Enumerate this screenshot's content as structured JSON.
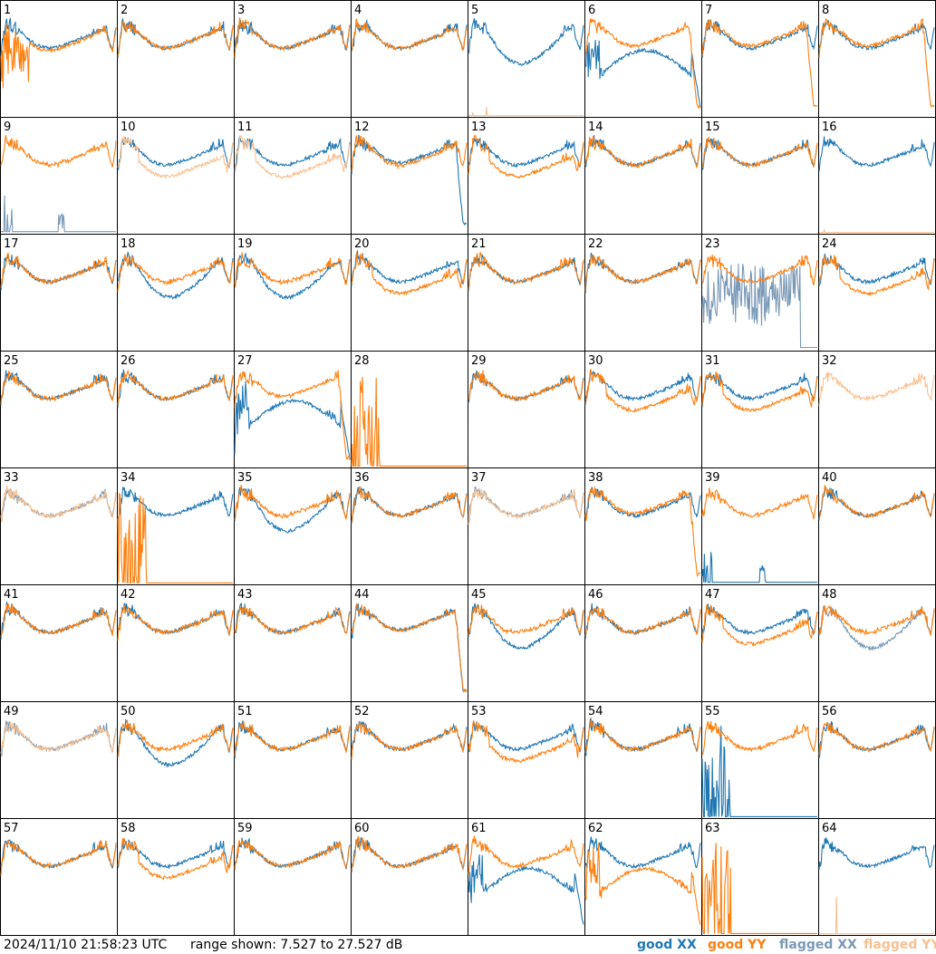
{
  "footer": {
    "timestamp": "2024/11/10 21:58:23 UTC",
    "range_text": "range shown: 7.527 to 27.527 dB",
    "legend": {
      "good_xx": "good XX",
      "good_yy": "good YY",
      "flagged_xx": "flagged XX",
      "flagged_yy": "flagged YY"
    }
  },
  "colors": {
    "good_xx": "#1f77b4",
    "good_yy": "#ff7f0e",
    "flagged_xx": "#7a99b6",
    "flagged_yy": "#f9c08f",
    "border": "#000000"
  },
  "chart_data": {
    "type": "line",
    "title": "",
    "ylim": [
      7.527,
      27.527
    ],
    "yunit": "dB",
    "grid": "8x8 small multiples",
    "panels": [
      {
        "id": "1",
        "xx": "good",
        "yy": "good",
        "xx_shape": "normal",
        "yy_shape": "spiky_low"
      },
      {
        "id": "2",
        "xx": "good",
        "yy": "good",
        "xx_shape": "normal",
        "yy_shape": "normal"
      },
      {
        "id": "3",
        "xx": "good",
        "yy": "good",
        "xx_shape": "normal",
        "yy_shape": "normal"
      },
      {
        "id": "4",
        "xx": "good",
        "yy": "good",
        "xx_shape": "normal",
        "yy_shape": "normal"
      },
      {
        "id": "5",
        "xx": "good",
        "yy": "flagged",
        "xx_shape": "dip",
        "yy_shape": "bottom"
      },
      {
        "id": "6",
        "xx": "good",
        "yy": "good",
        "xx_shape": "trough",
        "yy_shape": "high"
      },
      {
        "id": "7",
        "xx": "good",
        "yy": "good",
        "xx_shape": "normal",
        "yy_shape": "high"
      },
      {
        "id": "8",
        "xx": "good",
        "yy": "good",
        "xx_shape": "normal",
        "yy_shape": "high"
      },
      {
        "id": "9",
        "xx": "flagged",
        "yy": "good",
        "xx_shape": "sparse",
        "yy_shape": "normal"
      },
      {
        "id": "10",
        "xx": "good",
        "yy": "flagged",
        "xx_shape": "normal",
        "yy_shape": "low"
      },
      {
        "id": "11",
        "xx": "good",
        "yy": "flagged",
        "xx_shape": "normal",
        "yy_shape": "low"
      },
      {
        "id": "12",
        "xx": "good",
        "yy": "good",
        "xx_shape": "high",
        "yy_shape": "normal"
      },
      {
        "id": "13",
        "xx": "good",
        "yy": "good",
        "xx_shape": "normal",
        "yy_shape": "low"
      },
      {
        "id": "14",
        "xx": "good",
        "yy": "good",
        "xx_shape": "normal",
        "yy_shape": "normal"
      },
      {
        "id": "15",
        "xx": "good",
        "yy": "good",
        "xx_shape": "normal",
        "yy_shape": "normal"
      },
      {
        "id": "16",
        "xx": "good",
        "yy": "flagged",
        "xx_shape": "normal",
        "yy_shape": "bottom"
      },
      {
        "id": "17",
        "xx": "good",
        "yy": "good",
        "xx_shape": "normal",
        "yy_shape": "normal"
      },
      {
        "id": "18",
        "xx": "good",
        "yy": "good",
        "xx_shape": "dip",
        "yy_shape": "normal"
      },
      {
        "id": "19",
        "xx": "good",
        "yy": "good",
        "xx_shape": "dip",
        "yy_shape": "normal"
      },
      {
        "id": "20",
        "xx": "good",
        "yy": "good",
        "xx_shape": "normal",
        "yy_shape": "low"
      },
      {
        "id": "21",
        "xx": "good",
        "yy": "good",
        "xx_shape": "normal",
        "yy_shape": "normal"
      },
      {
        "id": "22",
        "xx": "good",
        "yy": "good",
        "xx_shape": "normal",
        "yy_shape": "normal"
      },
      {
        "id": "23",
        "xx": "flagged",
        "yy": "good",
        "xx_shape": "noisy",
        "yy_shape": "normal"
      },
      {
        "id": "24",
        "xx": "good",
        "yy": "good",
        "xx_shape": "normal",
        "yy_shape": "low"
      },
      {
        "id": "25",
        "xx": "good",
        "yy": "good",
        "xx_shape": "normal",
        "yy_shape": "normal"
      },
      {
        "id": "26",
        "xx": "good",
        "yy": "good",
        "xx_shape": "normal",
        "yy_shape": "normal"
      },
      {
        "id": "27",
        "xx": "good",
        "yy": "good",
        "xx_shape": "trough",
        "yy_shape": "high"
      },
      {
        "id": "28",
        "xx": "none",
        "yy": "good",
        "xx_shape": "none",
        "yy_shape": "spikes"
      },
      {
        "id": "29",
        "xx": "good",
        "yy": "good",
        "xx_shape": "normal",
        "yy_shape": "normal"
      },
      {
        "id": "30",
        "xx": "good",
        "yy": "good",
        "xx_shape": "normal",
        "yy_shape": "low"
      },
      {
        "id": "31",
        "xx": "good",
        "yy": "good",
        "xx_shape": "normal",
        "yy_shape": "low"
      },
      {
        "id": "32",
        "xx": "none",
        "yy": "flagged",
        "xx_shape": "none",
        "yy_shape": "normal"
      },
      {
        "id": "33",
        "xx": "flagged",
        "yy": "flagged",
        "xx_shape": "normal",
        "yy_shape": "normal"
      },
      {
        "id": "34",
        "xx": "good",
        "yy": "good",
        "xx_shape": "normal",
        "yy_shape": "spikes"
      },
      {
        "id": "35",
        "xx": "good",
        "yy": "good",
        "xx_shape": "dip",
        "yy_shape": "normal"
      },
      {
        "id": "36",
        "xx": "good",
        "yy": "good",
        "xx_shape": "normal",
        "yy_shape": "normal"
      },
      {
        "id": "37",
        "xx": "flagged",
        "yy": "flagged",
        "xx_shape": "normal",
        "yy_shape": "normal"
      },
      {
        "id": "38",
        "xx": "good",
        "yy": "good",
        "xx_shape": "normal",
        "yy_shape": "high"
      },
      {
        "id": "39",
        "xx": "good",
        "yy": "good",
        "xx_shape": "sparse",
        "yy_shape": "normal"
      },
      {
        "id": "40",
        "xx": "good",
        "yy": "good",
        "xx_shape": "normal",
        "yy_shape": "normal"
      },
      {
        "id": "41",
        "xx": "good",
        "yy": "good",
        "xx_shape": "normal",
        "yy_shape": "normal"
      },
      {
        "id": "42",
        "xx": "good",
        "yy": "good",
        "xx_shape": "normal",
        "yy_shape": "normal"
      },
      {
        "id": "43",
        "xx": "good",
        "yy": "good",
        "xx_shape": "normal",
        "yy_shape": "normal"
      },
      {
        "id": "44",
        "xx": "good",
        "yy": "good",
        "xx_shape": "high",
        "yy_shape": "high"
      },
      {
        "id": "45",
        "xx": "good",
        "yy": "good",
        "xx_shape": "dip",
        "yy_shape": "normal"
      },
      {
        "id": "46",
        "xx": "good",
        "yy": "good",
        "xx_shape": "normal",
        "yy_shape": "normal"
      },
      {
        "id": "47",
        "xx": "good",
        "yy": "good",
        "xx_shape": "normal",
        "yy_shape": "low"
      },
      {
        "id": "48",
        "xx": "flagged",
        "yy": "good",
        "xx_shape": "dip",
        "yy_shape": "normal"
      },
      {
        "id": "49",
        "xx": "flagged",
        "yy": "flagged",
        "xx_shape": "normal",
        "yy_shape": "normal"
      },
      {
        "id": "50",
        "xx": "good",
        "yy": "good",
        "xx_shape": "dip",
        "yy_shape": "normal"
      },
      {
        "id": "51",
        "xx": "good",
        "yy": "good",
        "xx_shape": "normal",
        "yy_shape": "normal"
      },
      {
        "id": "52",
        "xx": "good",
        "yy": "good",
        "xx_shape": "normal",
        "yy_shape": "normal"
      },
      {
        "id": "53",
        "xx": "good",
        "yy": "good",
        "xx_shape": "normal",
        "yy_shape": "low"
      },
      {
        "id": "54",
        "xx": "good",
        "yy": "good",
        "xx_shape": "normal",
        "yy_shape": "normal"
      },
      {
        "id": "55",
        "xx": "good",
        "yy": "good",
        "xx_shape": "spikes",
        "yy_shape": "normal"
      },
      {
        "id": "56",
        "xx": "good",
        "yy": "good",
        "xx_shape": "normal",
        "yy_shape": "normal"
      },
      {
        "id": "57",
        "xx": "good",
        "yy": "good",
        "xx_shape": "normal",
        "yy_shape": "normal"
      },
      {
        "id": "58",
        "xx": "good",
        "yy": "good",
        "xx_shape": "normal",
        "yy_shape": "low"
      },
      {
        "id": "59",
        "xx": "good",
        "yy": "good",
        "xx_shape": "normal",
        "yy_shape": "normal"
      },
      {
        "id": "60",
        "xx": "good",
        "yy": "good",
        "xx_shape": "normal",
        "yy_shape": "normal"
      },
      {
        "id": "61",
        "xx": "good",
        "yy": "good",
        "xx_shape": "trough",
        "yy_shape": "normal"
      },
      {
        "id": "62",
        "xx": "good",
        "yy": "good",
        "xx_shape": "normal",
        "yy_shape": "trough"
      },
      {
        "id": "63",
        "xx": "none",
        "yy": "good",
        "xx_shape": "none",
        "yy_shape": "spikes"
      },
      {
        "id": "64",
        "xx": "good",
        "yy": "flagged",
        "xx_shape": "normal",
        "yy_shape": "bottom"
      }
    ]
  }
}
